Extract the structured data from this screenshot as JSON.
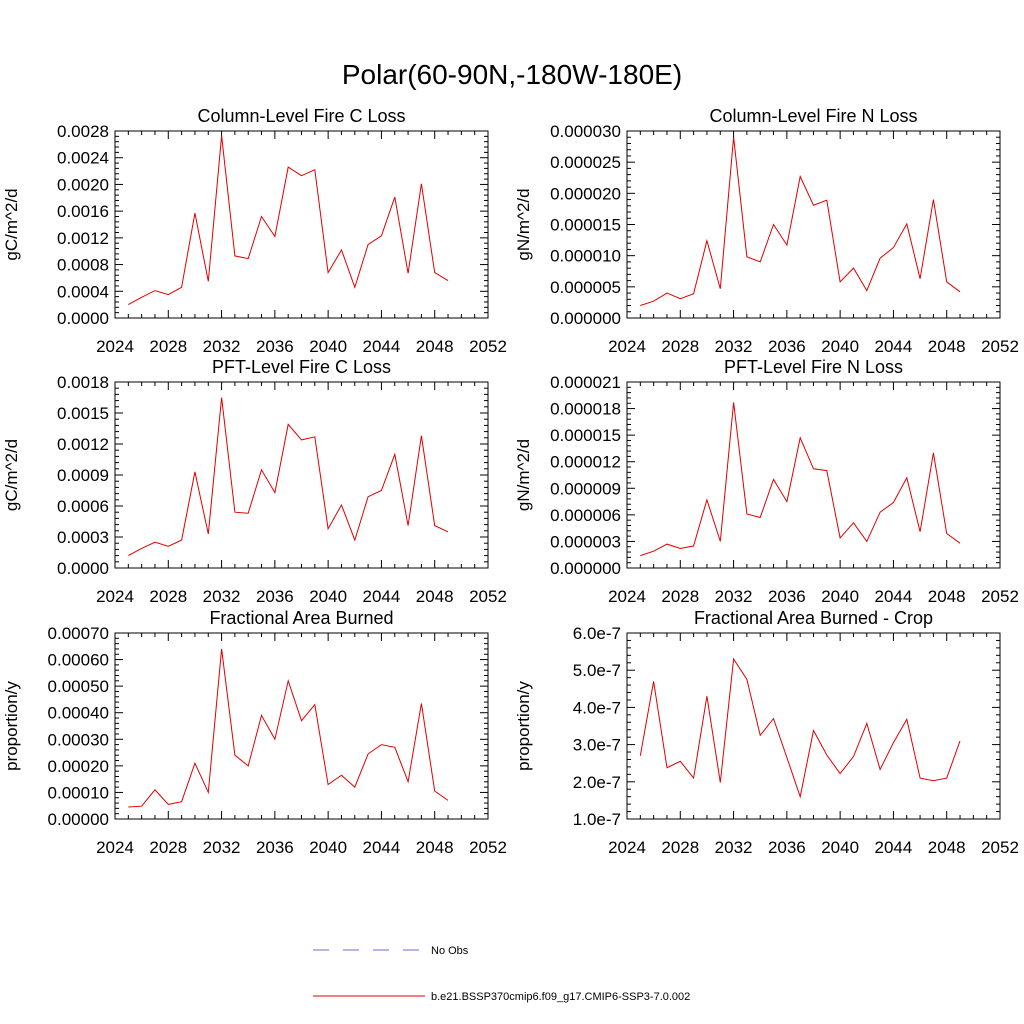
{
  "figure_title": "Polar(60-90N,-180W-180E)",
  "legend": {
    "obs_label": "No Obs",
    "obs_color": "#6b6bd6",
    "model_label": "b.e21.BSSP370cmip6.f09_g17.CMIP6-SSP3-7.0.002",
    "model_color": "#e00000"
  },
  "chart_data": [
    {
      "type": "line",
      "title": "Column-Level Fire C Loss",
      "ylabel": "gC/m^2/d",
      "xlim": [
        2024,
        2052
      ],
      "ylim": [
        0,
        0.0028
      ],
      "xticks": [
        "2024",
        "2028",
        "2032",
        "2036",
        "2040",
        "2044",
        "2048",
        "2052"
      ],
      "yticks": [
        "0.0000",
        "0.0004",
        "0.0008",
        "0.0012",
        "0.0016",
        "0.0020",
        "0.0024",
        "0.0028"
      ],
      "x": [
        2025,
        2026,
        2027,
        2028,
        2029,
        2030,
        2031,
        2032,
        2033,
        2034,
        2035,
        2036,
        2037,
        2038,
        2039,
        2040,
        2041,
        2042,
        2043,
        2044,
        2045,
        2046,
        2047,
        2048,
        2049
      ],
      "series": [
        {
          "name": "b.e21.BSSP370cmip6.f09_g17.CMIP6-SSP3-7.0.002",
          "values": [
            0.0002,
            0.00031,
            0.00041,
            0.00035,
            0.00046,
            0.00157,
            0.00055,
            0.00273,
            0.00093,
            0.00089,
            0.00152,
            0.00122,
            0.00226,
            0.00213,
            0.00222,
            0.00068,
            0.00102,
            0.00046,
            0.0011,
            0.00123,
            0.00181,
            0.00067,
            0.00201,
            0.00068,
            0.00056
          ]
        }
      ]
    },
    {
      "type": "line",
      "title": "Column-Level Fire N Loss",
      "ylabel": "gN/m^2/d",
      "xlim": [
        2024,
        2052
      ],
      "ylim": [
        0,
        3e-05
      ],
      "xticks": [
        "2024",
        "2028",
        "2032",
        "2036",
        "2040",
        "2044",
        "2048",
        "2052"
      ],
      "yticks": [
        "0.000000",
        "0.000005",
        "0.000010",
        "0.000015",
        "0.000020",
        "0.000025",
        "0.000030"
      ],
      "x": [
        2025,
        2026,
        2027,
        2028,
        2029,
        2030,
        2031,
        2032,
        2033,
        2034,
        2035,
        2036,
        2037,
        2038,
        2039,
        2040,
        2041,
        2042,
        2043,
        2044,
        2045,
        2046,
        2047,
        2048,
        2049
      ],
      "series": [
        {
          "name": "b.e21.BSSP370cmip6.f09_g17.CMIP6-SSP3-7.0.002",
          "values": [
            2e-06,
            2.7e-06,
            4e-06,
            3.1e-06,
            3.9e-06,
            1.24e-05,
            4.7e-06,
            2.9e-05,
            9.8e-06,
            9e-06,
            1.5e-05,
            1.17e-05,
            2.27e-05,
            1.81e-05,
            1.89e-05,
            5.8e-06,
            8e-06,
            4.4e-06,
            9.6e-06,
            1.13e-05,
            1.51e-05,
            6.3e-06,
            1.9e-05,
            5.8e-06,
            4.2e-06
          ]
        }
      ]
    },
    {
      "type": "line",
      "title": "PFT-Level Fire C Loss",
      "ylabel": "gC/m^2/d",
      "xlim": [
        2024,
        2052
      ],
      "ylim": [
        0,
        0.0018
      ],
      "xticks": [
        "2024",
        "2028",
        "2032",
        "2036",
        "2040",
        "2044",
        "2048",
        "2052"
      ],
      "yticks": [
        "0.0000",
        "0.0003",
        "0.0006",
        "0.0009",
        "0.0012",
        "0.0015",
        "0.0018"
      ],
      "x": [
        2025,
        2026,
        2027,
        2028,
        2029,
        2030,
        2031,
        2032,
        2033,
        2034,
        2035,
        2036,
        2037,
        2038,
        2039,
        2040,
        2041,
        2042,
        2043,
        2044,
        2045,
        2046,
        2047,
        2048,
        2049
      ],
      "series": [
        {
          "name": "b.e21.BSSP370cmip6.f09_g17.CMIP6-SSP3-7.0.002",
          "values": [
            0.00012,
            0.00019,
            0.00025,
            0.00021,
            0.00027,
            0.00093,
            0.00033,
            0.00165,
            0.00054,
            0.00053,
            0.00095,
            0.00073,
            0.00139,
            0.00124,
            0.00127,
            0.00038,
            0.00061,
            0.00027,
            0.00069,
            0.00075,
            0.0011,
            0.00041,
            0.00128,
            0.00041,
            0.00035
          ]
        }
      ]
    },
    {
      "type": "line",
      "title": "PFT-Level Fire N Loss",
      "ylabel": "gN/m^2/d",
      "xlim": [
        2024,
        2052
      ],
      "ylim": [
        0,
        2.1e-05
      ],
      "xticks": [
        "2024",
        "2028",
        "2032",
        "2036",
        "2040",
        "2044",
        "2048",
        "2052"
      ],
      "yticks": [
        "0.000000",
        "0.000003",
        "0.000006",
        "0.000009",
        "0.000012",
        "0.000015",
        "0.000018",
        "0.000021"
      ],
      "x": [
        2025,
        2026,
        2027,
        2028,
        2029,
        2030,
        2031,
        2032,
        2033,
        2034,
        2035,
        2036,
        2037,
        2038,
        2039,
        2040,
        2041,
        2042,
        2043,
        2044,
        2045,
        2046,
        2047,
        2048,
        2049
      ],
      "series": [
        {
          "name": "b.e21.BSSP370cmip6.f09_g17.CMIP6-SSP3-7.0.002",
          "values": [
            1.4e-06,
            1.9e-06,
            2.7e-06,
            2.2e-06,
            2.5e-06,
            7.7e-06,
            3e-06,
            1.87e-05,
            6.1e-06,
            5.7e-06,
            1e-05,
            7.5e-06,
            1.47e-05,
            1.12e-05,
            1.1e-05,
            3.4e-06,
            5.1e-06,
            3e-06,
            6.3e-06,
            7.4e-06,
            1.02e-05,
            4.1e-06,
            1.3e-05,
            3.9e-06,
            2.8e-06
          ]
        }
      ]
    },
    {
      "type": "line",
      "title": "Fractional Area Burned",
      "ylabel": "proportion/y",
      "xlim": [
        2024,
        2052
      ],
      "ylim": [
        0,
        0.0007
      ],
      "xticks": [
        "2024",
        "2028",
        "2032",
        "2036",
        "2040",
        "2044",
        "2048",
        "2052"
      ],
      "yticks": [
        "0.00000",
        "0.00010",
        "0.00020",
        "0.00030",
        "0.00040",
        "0.00050",
        "0.00060",
        "0.00070"
      ],
      "x": [
        2025,
        2026,
        2027,
        2028,
        2029,
        2030,
        2031,
        2032,
        2033,
        2034,
        2035,
        2036,
        2037,
        2038,
        2039,
        2040,
        2041,
        2042,
        2043,
        2044,
        2045,
        2046,
        2047,
        2048,
        2049
      ],
      "series": [
        {
          "name": "b.e21.BSSP370cmip6.f09_g17.CMIP6-SSP3-7.0.002",
          "values": [
            4.5e-05,
            4.8e-05,
            0.00011,
            5.5e-05,
            6.5e-05,
            0.00021,
            0.0001,
            0.00064,
            0.00024,
            0.0002,
            0.00039,
            0.0003,
            0.00052,
            0.00037,
            0.00043,
            0.00013,
            0.000165,
            0.00012,
            0.000245,
            0.00028,
            0.00027,
            0.00014,
            0.000435,
            0.000105,
            7e-05
          ]
        }
      ]
    },
    {
      "type": "line",
      "title": "Fractional Area Burned - Crop",
      "ylabel": "proportion/y",
      "xlim": [
        2024,
        2052
      ],
      "ylim": [
        1e-07,
        6e-07
      ],
      "xticks": [
        "2024",
        "2028",
        "2032",
        "2036",
        "2040",
        "2044",
        "2048",
        "2052"
      ],
      "yticks": [
        "1.0e-7",
        "2.0e-7",
        "3.0e-7",
        "4.0e-7",
        "5.0e-7",
        "6.0e-7"
      ],
      "x": [
        2025,
        2026,
        2027,
        2028,
        2029,
        2030,
        2031,
        2032,
        2033,
        2034,
        2035,
        2036,
        2037,
        2038,
        2039,
        2040,
        2041,
        2042,
        2043,
        2044,
        2045,
        2046,
        2047,
        2048,
        2049
      ],
      "series": [
        {
          "name": "b.e21.BSSP370cmip6.f09_g17.CMIP6-SSP3-7.0.002",
          "values": [
            2.7e-07,
            4.7e-07,
            2.38e-07,
            2.55e-07,
            2.1e-07,
            4.3e-07,
            1.98e-07,
            5.3e-07,
            4.75e-07,
            3.25e-07,
            3.7e-07,
            2.65e-07,
            1.6e-07,
            3.38e-07,
            2.72e-07,
            2.22e-07,
            2.68e-07,
            3.57e-07,
            2.33e-07,
            3.05e-07,
            3.68e-07,
            2.1e-07,
            2.03e-07,
            2.1e-07,
            3.1e-07
          ]
        }
      ]
    }
  ]
}
